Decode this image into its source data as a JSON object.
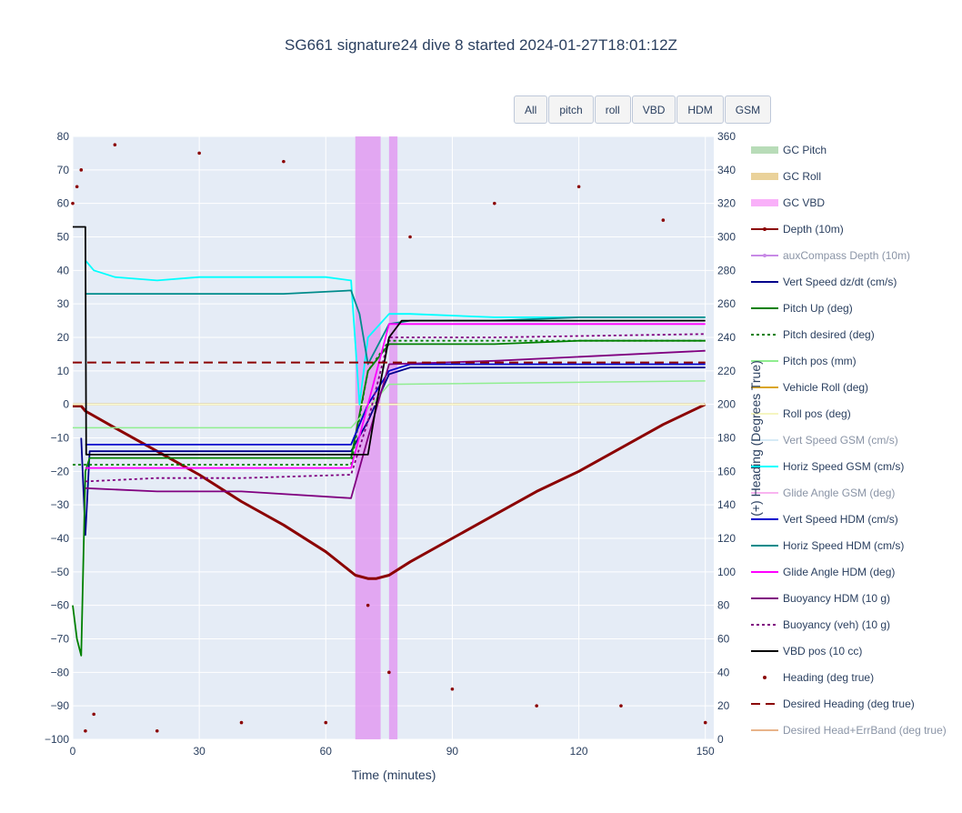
{
  "chart_data": {
    "type": "line",
    "title": "SG661 signature24 dive 8 started 2024-01-27T18:01:12Z",
    "xlabel": "Time (minutes)",
    "ylabel": "",
    "y2label": "(+) Heading (Degrees True)",
    "xlim": [
      0,
      152
    ],
    "ylim": [
      -100,
      80
    ],
    "y2lim": [
      0,
      360
    ],
    "x_ticks": [
      0,
      30,
      60,
      90,
      120,
      150
    ],
    "y_ticks": [
      -100,
      -90,
      -80,
      -70,
      -60,
      -50,
      -40,
      -30,
      -20,
      -10,
      0,
      10,
      20,
      30,
      40,
      50,
      60,
      70,
      80
    ],
    "y2_ticks": [
      0,
      20,
      40,
      60,
      80,
      100,
      120,
      140,
      160,
      180,
      200,
      220,
      240,
      260,
      280,
      300,
      320,
      340,
      360
    ],
    "grid": true,
    "legend_position": "right",
    "shaded_regions": [
      {
        "name": "GC VBD",
        "x": [
          67,
          73
        ],
        "color": "#e090f0"
      },
      {
        "name": "GC VBD",
        "x": [
          75,
          77
        ],
        "color": "#e090f0"
      }
    ],
    "series": [
      {
        "name": "GC Pitch",
        "color": "#9fd49f",
        "values": []
      },
      {
        "name": "GC Roll",
        "color": "#e6c47a",
        "values": []
      },
      {
        "name": "GC VBD",
        "color": "#f6a6f6",
        "values": []
      },
      {
        "name": "Depth (10m)",
        "color": "#8b0000",
        "x": [
          0,
          2,
          3,
          10,
          20,
          30,
          40,
          50,
          60,
          67,
          70,
          72,
          75,
          80,
          90,
          100,
          110,
          120,
          130,
          140,
          150
        ],
        "values": [
          -0.5,
          -0.5,
          -2,
          -7,
          -14,
          -21,
          -29,
          -36,
          -44,
          -51,
          -52,
          -52,
          -51,
          -47,
          -40,
          -33,
          -26,
          -20,
          -13,
          -6,
          0
        ]
      },
      {
        "name": "auxCompass Depth (10m)",
        "color": "#c88ae6",
        "values": []
      },
      {
        "name": "Vert Speed dz/dt (cm/s)",
        "color": "#00008b",
        "x": [
          2,
          3,
          4,
          10,
          30,
          50,
          66,
          70,
          75,
          80,
          100,
          120,
          150
        ],
        "values": [
          -10,
          -39,
          -14,
          -14,
          -14,
          -14,
          -14,
          -5,
          9,
          11,
          11,
          11,
          11
        ]
      },
      {
        "name": "Pitch Up (deg)",
        "color": "#008000",
        "x": [
          0,
          1,
          2,
          3,
          4,
          10,
          30,
          50,
          66,
          70,
          75,
          80,
          100,
          120,
          150
        ],
        "values": [
          -60,
          -70,
          -75,
          -20,
          -16,
          -16,
          -16,
          -16,
          -16,
          10,
          18,
          18,
          18,
          19,
          19
        ]
      },
      {
        "name": "Pitch desired (deg)",
        "color": "#008000",
        "x": [
          0,
          3,
          66,
          70,
          75,
          150
        ],
        "values": [
          -18,
          -18,
          -18,
          10,
          19,
          19
        ]
      },
      {
        "name": "Pitch pos (mm)",
        "color": "#90ee90",
        "x": [
          0,
          3,
          66,
          75,
          150
        ],
        "values": [
          -7,
          -7,
          -7,
          6,
          7
        ]
      },
      {
        "name": "Vehicle Roll (deg)",
        "color": "#daa520",
        "x": [
          0,
          150
        ],
        "values": [
          0,
          0
        ]
      },
      {
        "name": "Roll pos (deg)",
        "color": "#fafad2",
        "x": [
          0,
          150
        ],
        "values": [
          0,
          0
        ]
      },
      {
        "name": "Vert Speed GSM (cm/s)",
        "color": "#cde8f6",
        "values": []
      },
      {
        "name": "Horiz Speed GSM (cm/s)",
        "color": "#00ffff",
        "x": [
          3,
          5,
          10,
          20,
          30,
          40,
          50,
          60,
          66,
          68,
          70,
          75,
          80,
          100,
          120,
          150
        ],
        "values": [
          43,
          40,
          38,
          37,
          38,
          38,
          38,
          38,
          37,
          0,
          20,
          27,
          27,
          26,
          26,
          26
        ]
      },
      {
        "name": "Glide Angle GSM (deg)",
        "color": "#f9b4f0",
        "values": []
      },
      {
        "name": "Vert Speed HDM (cm/s)",
        "color": "#0000cd",
        "x": [
          3,
          10,
          30,
          50,
          66,
          70,
          75,
          80,
          100,
          120,
          150
        ],
        "values": [
          -12,
          -12,
          -12,
          -12,
          -12,
          0,
          10,
          12,
          12,
          12,
          12
        ]
      },
      {
        "name": "Horiz Speed HDM (cm/s)",
        "color": "#008b8b",
        "x": [
          3,
          10,
          30,
          50,
          66,
          68,
          70,
          75,
          80,
          100,
          120,
          150
        ],
        "values": [
          33,
          33,
          33,
          33,
          34,
          27,
          12,
          24,
          25,
          25,
          26,
          26
        ]
      },
      {
        "name": "Glide Angle HDM (deg)",
        "color": "#ff00ff",
        "x": [
          3,
          10,
          30,
          50,
          66,
          70,
          75,
          80,
          100,
          120,
          150
        ],
        "values": [
          -19,
          -19,
          -19,
          -19,
          -19,
          0,
          24,
          24,
          24,
          24,
          24
        ]
      },
      {
        "name": "Buoyancy HDM (10 g)",
        "color": "#800080",
        "x": [
          3,
          20,
          40,
          66,
          70,
          75,
          100,
          150
        ],
        "values": [
          -25,
          -26,
          -26,
          -28,
          -10,
          12,
          13,
          16
        ]
      },
      {
        "name": "Buoyancy (veh) (10 g)",
        "color": "#800080",
        "x": [
          3,
          20,
          40,
          66,
          70,
          75,
          100,
          150
        ],
        "values": [
          -23,
          -22,
          -22,
          -21,
          -5,
          20,
          20,
          21
        ]
      },
      {
        "name": "VBD pos (10 cc)",
        "color": "#000000",
        "x": [
          0,
          3,
          3.2,
          10,
          30,
          50,
          70,
          72,
          75,
          78,
          150
        ],
        "values": [
          53,
          53,
          -15,
          -15,
          -15,
          -15,
          -15,
          0,
          20,
          25,
          25
        ]
      },
      {
        "name": "Heading (deg true)",
        "color": "#8b0000",
        "axis": "y2",
        "x": [
          0,
          1,
          2,
          3,
          5,
          10,
          20,
          30,
          40,
          50,
          60,
          70,
          75,
          80,
          90,
          100,
          110,
          120,
          130,
          140,
          150
        ],
        "values": [
          320,
          330,
          340,
          5,
          15,
          355,
          5,
          350,
          10,
          345,
          10,
          80,
          40,
          300,
          30,
          320,
          20,
          330,
          20,
          310,
          10
        ]
      },
      {
        "name": "Desired Heading (deg true)",
        "color": "#8b0000",
        "axis": "y2",
        "x": [
          0,
          150
        ],
        "values": [
          225,
          225
        ]
      },
      {
        "name": "Desired Head+ErrBand (deg true)",
        "color": "#e8b48a",
        "axis": "y2",
        "values": []
      }
    ],
    "legend": [
      {
        "name": "GC Pitch",
        "style": "band",
        "color": "#b8dcb8",
        "dim": false
      },
      {
        "name": "GC Roll",
        "style": "band",
        "color": "#ead29a",
        "dim": false
      },
      {
        "name": "GC VBD",
        "style": "band",
        "color": "#f9b0f9",
        "dim": false
      },
      {
        "name": "Depth (10m)",
        "style": "line-marker",
        "color": "#8b0000",
        "dim": false
      },
      {
        "name": "auxCompass Depth (10m)",
        "style": "line-marker",
        "color": "#c88ae6",
        "dim": true
      },
      {
        "name": "Vert Speed dz/dt (cm/s)",
        "style": "line",
        "color": "#00008b",
        "dim": false
      },
      {
        "name": "Pitch Up (deg)",
        "style": "line",
        "color": "#008000",
        "dim": false
      },
      {
        "name": "Pitch desired (deg)",
        "style": "dot",
        "color": "#008000",
        "dim": false
      },
      {
        "name": "Pitch pos (mm)",
        "style": "line",
        "color": "#90ee90",
        "dim": false
      },
      {
        "name": "Vehicle Roll (deg)",
        "style": "line",
        "color": "#daa520",
        "dim": false
      },
      {
        "name": "Roll pos (deg)",
        "style": "line",
        "color": "#f5f5c0",
        "dim": false
      },
      {
        "name": "Vert Speed GSM (cm/s)",
        "style": "line",
        "color": "#d6ebf6",
        "dim": true
      },
      {
        "name": "Horiz Speed GSM (cm/s)",
        "style": "line",
        "color": "#00ffff",
        "dim": false
      },
      {
        "name": "Glide Angle GSM (deg)",
        "style": "line",
        "color": "#f9b4f0",
        "dim": true
      },
      {
        "name": "Vert Speed HDM (cm/s)",
        "style": "line",
        "color": "#0000cd",
        "dim": false
      },
      {
        "name": "Horiz Speed HDM (cm/s)",
        "style": "line",
        "color": "#008b8b",
        "dim": false
      },
      {
        "name": "Glide Angle HDM (deg)",
        "style": "line",
        "color": "#ff00ff",
        "dim": false
      },
      {
        "name": "Buoyancy HDM (10 g)",
        "style": "line",
        "color": "#800080",
        "dim": false
      },
      {
        "name": "Buoyancy (veh) (10 g)",
        "style": "dot",
        "color": "#800080",
        "dim": false
      },
      {
        "name": "VBD pos (10 cc)",
        "style": "line",
        "color": "#000000",
        "dim": false
      },
      {
        "name": "Heading (deg true)",
        "style": "marker",
        "color": "#8b0000",
        "dim": false
      },
      {
        "name": "Desired Heading (deg true)",
        "style": "dash",
        "color": "#8b0000",
        "dim": false
      },
      {
        "name": "Desired Head+ErrBand (deg true)",
        "style": "line",
        "color": "#e8b48a",
        "dim": true
      }
    ]
  },
  "buttons": [
    "All",
    "pitch",
    "roll",
    "VBD",
    "HDM",
    "GSM"
  ]
}
